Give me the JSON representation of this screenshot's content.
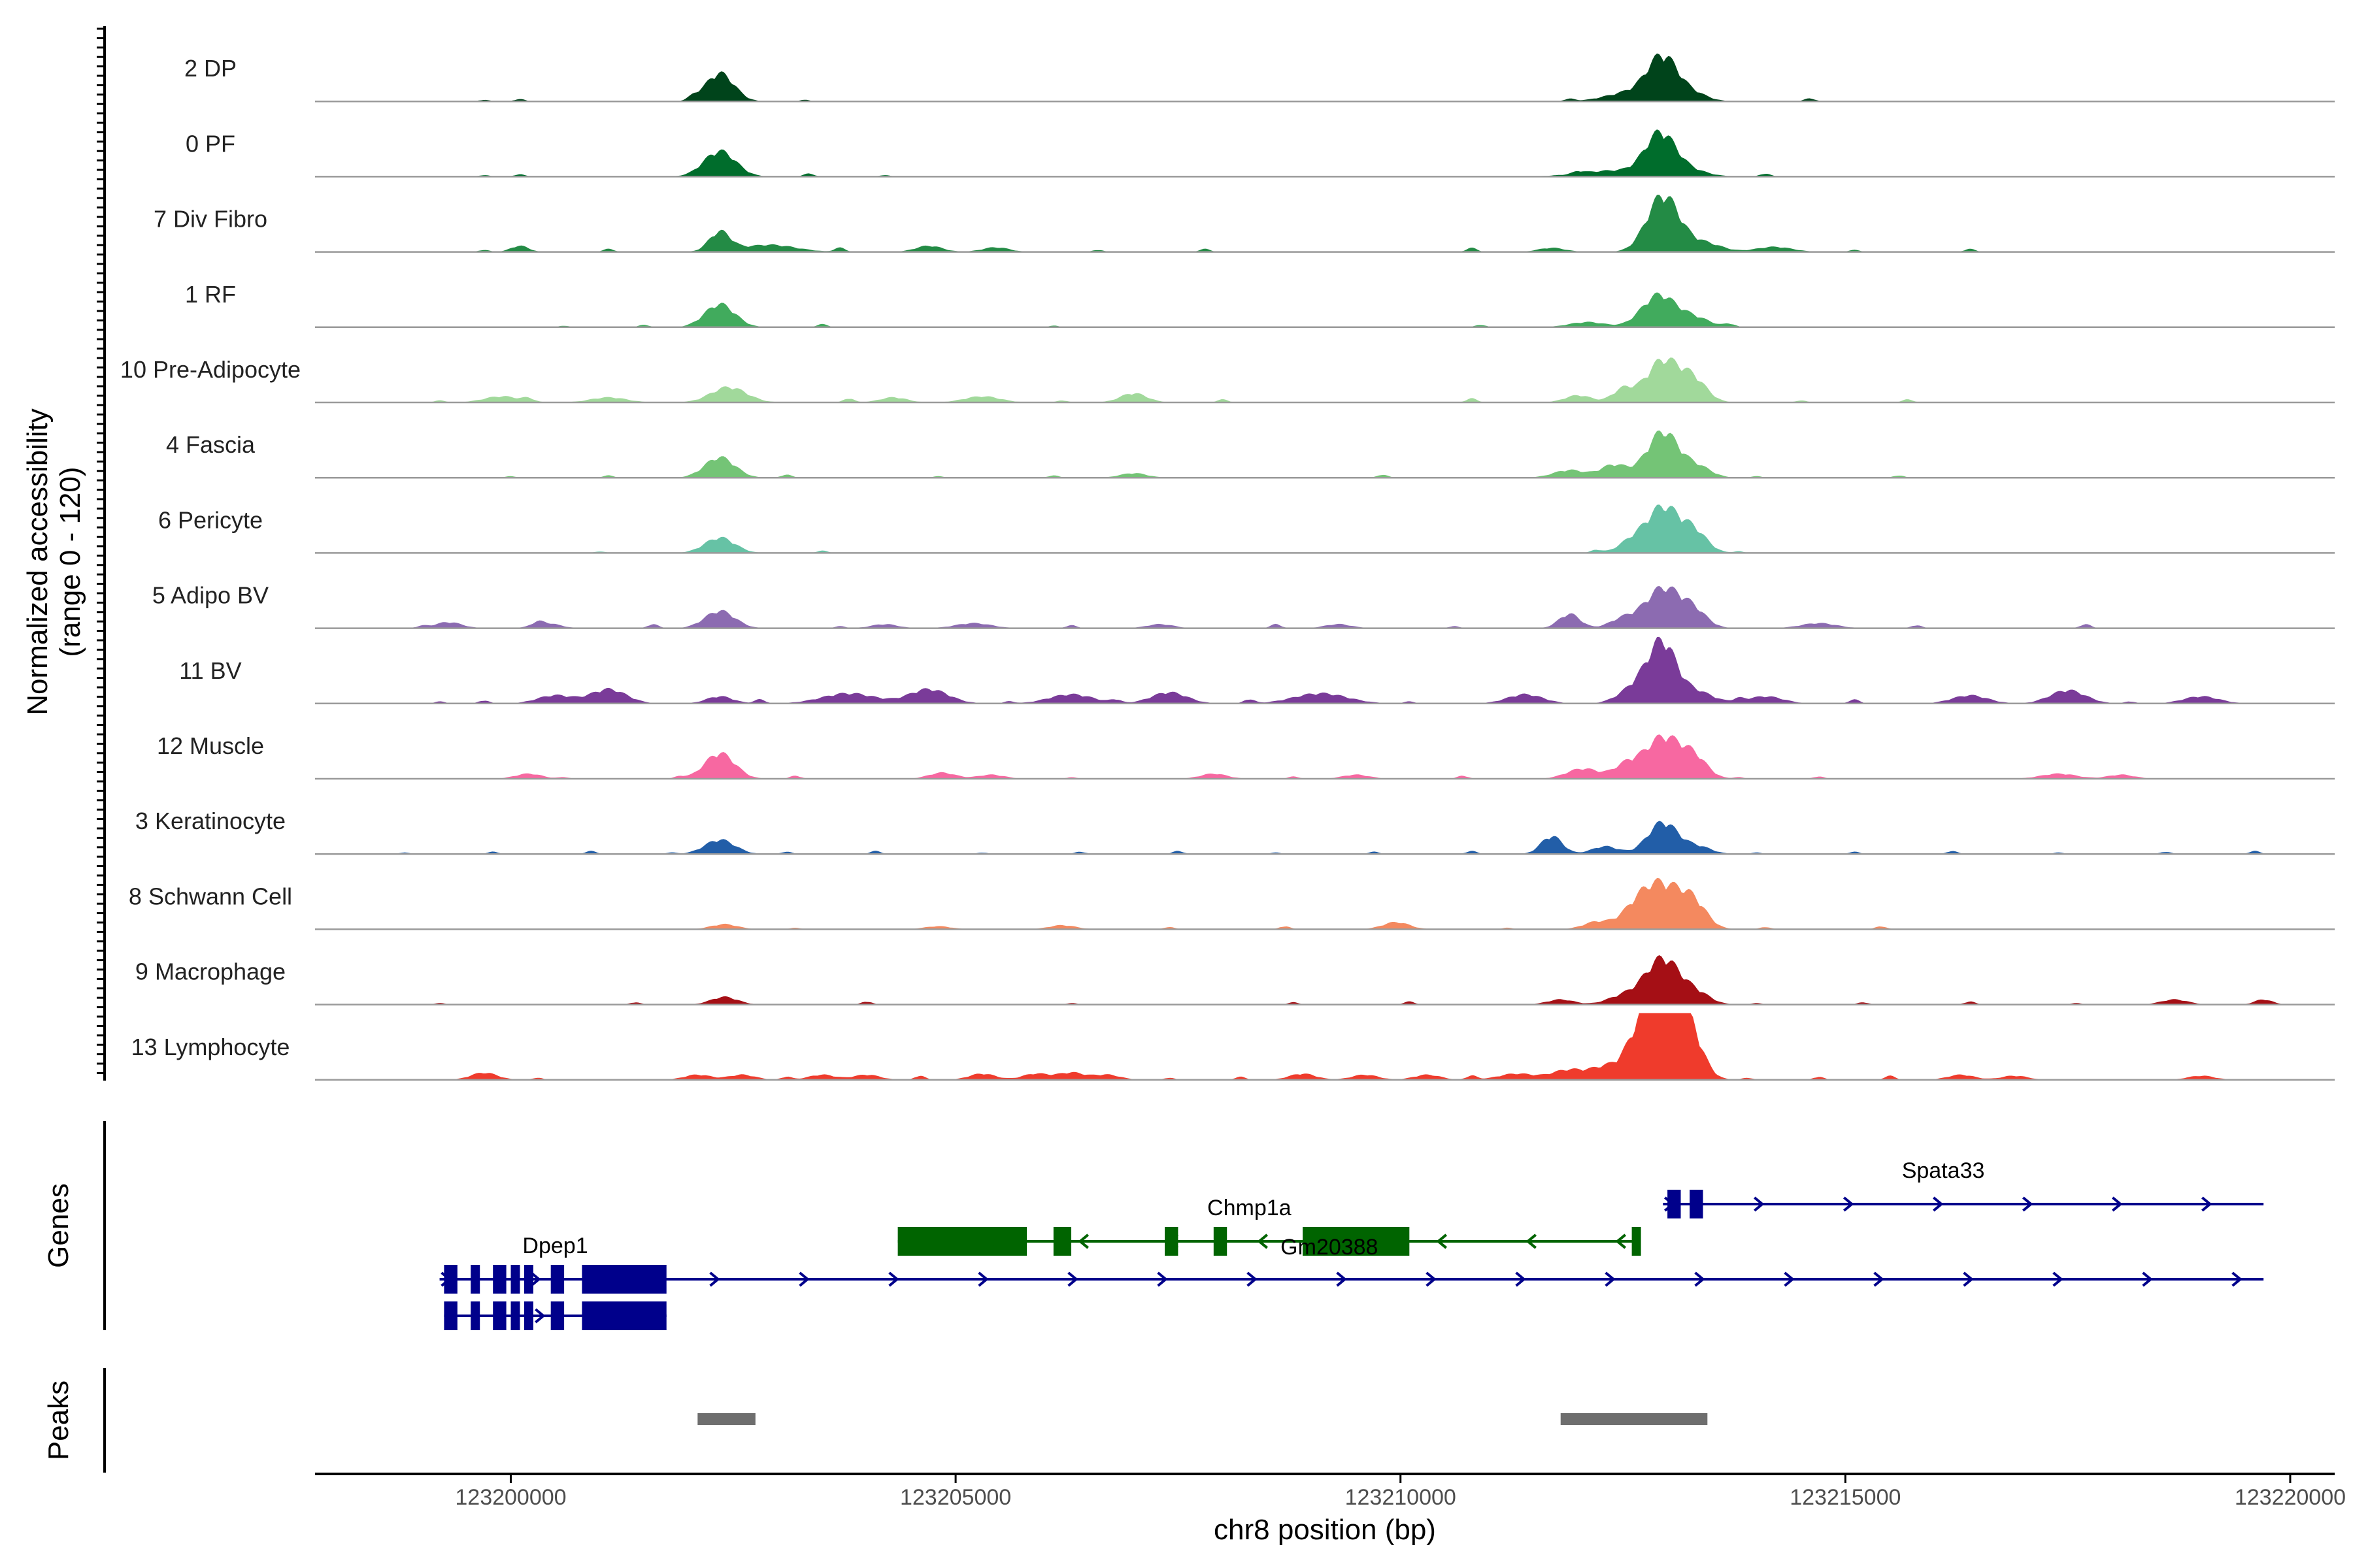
{
  "chart_data": {
    "type": "area",
    "title": "",
    "chromosome": "chr8",
    "xlabel": "chr8 position (bp)",
    "ylabel_line1": "Normalized accessibility",
    "ylabel_line2": "(range 0 - 120)",
    "xlim": [
      123197800,
      123220500
    ],
    "ylim": [
      0,
      120
    ],
    "x_ticks": [
      123200000,
      123205000,
      123210000,
      123215000,
      123220000
    ],
    "x_tick_labels": [
      "123200000",
      "123205000",
      "123210000",
      "123215000",
      "123220000"
    ],
    "tracks": [
      {
        "name": "2 DP",
        "color": "#00441b",
        "peaks": [
          [
            123202350,
            55,
            160
          ],
          [
            123212600,
            18,
            280
          ],
          [
            123212950,
            82,
            170
          ],
          [
            123213300,
            14,
            160
          ]
        ],
        "noise": [
          123199700,
          123200100,
          123202050,
          123203300,
          123211900,
          123214600
        ],
        "noise_level": 3
      },
      {
        "name": "0 PF",
        "color": "#006d2c",
        "peaks": [
          [
            123202350,
            50,
            180
          ],
          [
            123212400,
            12,
            380
          ],
          [
            123212920,
            80,
            170
          ],
          [
            123213250,
            12,
            200
          ]
        ],
        "noise": [
          123199700,
          123200100,
          123203350,
          123204200,
          123212000,
          123214100
        ],
        "noise_level": 3
      },
      {
        "name": "7 Div Fibro",
        "color": "#238b45",
        "peaks": [
          [
            123202350,
            38,
            120
          ],
          [
            123200100,
            12,
            100
          ],
          [
            123202900,
            14,
            300
          ],
          [
            123204700,
            12,
            150
          ],
          [
            123205450,
            9,
            150
          ],
          [
            123212950,
            110,
            180
          ],
          [
            123213400,
            18,
            200
          ],
          [
            123214200,
            10,
            200
          ],
          [
            123211700,
            8,
            150
          ]
        ],
        "noise": [
          123199700,
          123201100,
          123203700,
          123206600,
          123207800,
          123210800,
          123215100,
          123216400
        ],
        "noise_level": 4
      },
      {
        "name": "1 RF",
        "color": "#41ab5d",
        "peaks": [
          [
            123202350,
            45,
            170
          ],
          [
            123212900,
            62,
            190
          ],
          [
            123213300,
            18,
            180
          ],
          [
            123212100,
            10,
            200
          ]
        ],
        "noise": [
          123200600,
          123201500,
          123203500,
          123206100,
          123210900,
          123213700
        ],
        "noise_level": 3
      },
      {
        "name": "10 Pre-Adipocyte",
        "color": "#a1d99b",
        "peaks": [
          [
            123202450,
            30,
            200
          ],
          [
            123212950,
            82,
            190
          ],
          [
            123213300,
            40,
            150
          ],
          [
            123212500,
            25,
            120
          ],
          [
            123212000,
            14,
            150
          ],
          [
            123207000,
            18,
            150
          ],
          [
            123199900,
            12,
            200
          ],
          [
            123201100,
            10,
            200
          ],
          [
            123205300,
            12,
            200
          ],
          [
            123204300,
            10,
            150
          ]
        ],
        "noise": [
          123199200,
          123200200,
          123203800,
          123206200,
          123208000,
          123210800,
          123214500,
          123215700
        ],
        "noise_level": 4
      },
      {
        "name": "4 Fascia",
        "color": "#74c476",
        "peaks": [
          [
            123202350,
            40,
            170
          ],
          [
            123212950,
            90,
            180
          ],
          [
            123212400,
            25,
            150
          ],
          [
            123211900,
            15,
            180
          ],
          [
            123213350,
            20,
            150
          ],
          [
            123207000,
            9,
            150
          ]
        ],
        "noise": [
          123200000,
          123201100,
          123203100,
          123204800,
          123206100,
          123209800,
          123214000,
          123215600
        ],
        "noise_level": 3
      },
      {
        "name": "6 Pericyte",
        "color": "#66c2a5",
        "peaks": [
          [
            123202350,
            30,
            170
          ],
          [
            123212950,
            88,
            180
          ],
          [
            123213300,
            40,
            150
          ],
          [
            123212600,
            22,
            150
          ]
        ],
        "noise": [
          123201000,
          123203500,
          123212200,
          123213800
        ],
        "noise_level": 3
      },
      {
        "name": "5 Adipo BV",
        "color": "#8c6bb1",
        "peaks": [
          [
            123202350,
            34,
            170
          ],
          [
            123211900,
            28,
            120
          ],
          [
            123212950,
            78,
            200
          ],
          [
            123213300,
            30,
            150
          ],
          [
            123212500,
            18,
            150
          ],
          [
            123199300,
            12,
            150
          ],
          [
            123200400,
            10,
            150
          ],
          [
            123205200,
            10,
            200
          ],
          [
            123204200,
            8,
            150
          ],
          [
            123207300,
            8,
            150
          ],
          [
            123209300,
            8,
            150
          ],
          [
            123214700,
            10,
            200
          ]
        ],
        "noise": [
          123199000,
          123200300,
          123201600,
          123203700,
          123206300,
          123208600,
          123210600,
          123215800,
          123217700
        ],
        "noise_level": 4
      },
      {
        "name": "11 BV",
        "color": "#7a3b99",
        "peaks": [
          [
            123212950,
            100,
            150
          ],
          [
            123212700,
            40,
            200
          ],
          [
            123213300,
            25,
            200
          ],
          [
            123201100,
            28,
            200
          ],
          [
            123204700,
            28,
            220
          ],
          [
            123203800,
            20,
            300
          ],
          [
            123206300,
            18,
            250
          ],
          [
            123207400,
            22,
            200
          ],
          [
            123209100,
            20,
            300
          ],
          [
            123211400,
            18,
            200
          ],
          [
            123216400,
            16,
            200
          ],
          [
            123217500,
            26,
            200
          ],
          [
            123214100,
            14,
            200
          ],
          [
            123219000,
            14,
            200
          ],
          [
            123200500,
            16,
            200
          ],
          [
            123202350,
            14,
            150
          ]
        ],
        "noise": [
          123199200,
          123199700,
          123202800,
          123205600,
          123206800,
          123208300,
          123210100,
          123213800,
          123215100,
          123218200
        ],
        "noise_level": 4
      },
      {
        "name": "12 Muscle",
        "color": "#f768a1",
        "peaks": [
          [
            123202350,
            50,
            170
          ],
          [
            123212950,
            80,
            190
          ],
          [
            123213300,
            40,
            150
          ],
          [
            123212550,
            28,
            150
          ],
          [
            123212050,
            20,
            180
          ],
          [
            123200200,
            10,
            150
          ],
          [
            123204850,
            12,
            150
          ],
          [
            123205400,
            8,
            150
          ],
          [
            123207900,
            10,
            150
          ],
          [
            123209500,
            8,
            150
          ],
          [
            123217400,
            10,
            200
          ],
          [
            123218100,
            8,
            150
          ]
        ],
        "noise": [
          123200600,
          123201900,
          123203200,
          123206300,
          123208800,
          123210700,
          123213800,
          123214700
        ],
        "noise_level": 3
      },
      {
        "name": "3 Keratinocyte",
        "color": "#225ea8",
        "peaks": [
          [
            123212950,
            62,
            170
          ],
          [
            123211700,
            35,
            120
          ],
          [
            123212300,
            15,
            150
          ],
          [
            123202350,
            28,
            170
          ],
          [
            123213350,
            14,
            150
          ]
        ],
        "noise": [
          123198800,
          123199800,
          123200900,
          123201800,
          123203100,
          123204100,
          123205300,
          123206400,
          123207500,
          123208600,
          123209700,
          123210800,
          123214000,
          123215100,
          123216200,
          123217400,
          123218600,
          123219600
        ],
        "noise_level": 3
      },
      {
        "name": "8 Schwann Cell",
        "color": "#f4895f",
        "peaks": [
          [
            123212950,
            82,
            230
          ],
          [
            123212650,
            30,
            180
          ],
          [
            123213300,
            40,
            150
          ],
          [
            123212200,
            14,
            150
          ],
          [
            123209950,
            14,
            150
          ],
          [
            123206200,
            8,
            150
          ],
          [
            123202400,
            10,
            150
          ],
          [
            123204800,
            6,
            150
          ]
        ],
        "noise": [
          123203200,
          123207400,
          123208700,
          123211200,
          123214100,
          123215400
        ],
        "noise_level": 3
      },
      {
        "name": "9 Macrophage",
        "color": "#a50f15",
        "peaks": [
          [
            123212950,
            90,
            200
          ],
          [
            123212500,
            16,
            180
          ],
          [
            123213350,
            18,
            150
          ],
          [
            123202400,
            15,
            150
          ],
          [
            123211800,
            10,
            150
          ],
          [
            123218700,
            10,
            150
          ],
          [
            123219700,
            10,
            100
          ]
        ],
        "noise": [
          123199200,
          123201400,
          123204000,
          123206300,
          123208800,
          123210100,
          123214000,
          123215200,
          123216400,
          123217600
        ],
        "noise_level": 3
      },
      {
        "name": "13 Lymphocyte",
        "color": "#ef3b2c",
        "peaks": [
          [
            123212950,
            180,
            220
          ],
          [
            123213250,
            60,
            150
          ],
          [
            123212650,
            40,
            150
          ],
          [
            123212300,
            22,
            150
          ],
          [
            123211900,
            20,
            200
          ],
          [
            123211300,
            12,
            200
          ],
          [
            123199700,
            14,
            150
          ],
          [
            123202100,
            10,
            150
          ],
          [
            123202600,
            10,
            150
          ],
          [
            123203500,
            10,
            150
          ],
          [
            123204000,
            10,
            150
          ],
          [
            123205300,
            12,
            150
          ],
          [
            123205900,
            12,
            150
          ],
          [
            123206300,
            14,
            150
          ],
          [
            123206700,
            10,
            150
          ],
          [
            123208900,
            12,
            150
          ],
          [
            123209600,
            10,
            150
          ],
          [
            123210300,
            10,
            150
          ],
          [
            123216300,
            10,
            150
          ],
          [
            123216900,
            8,
            150
          ],
          [
            123219000,
            8,
            150
          ]
        ],
        "noise": [
          123200300,
          123203100,
          123204600,
          123207400,
          123208200,
          123210800,
          123213900,
          123214700,
          123215500
        ],
        "noise_level": 4
      }
    ],
    "genes": [
      {
        "name": "Dpep1",
        "strand": "+",
        "color": "#00008b",
        "row": 3,
        "line_start": 123199200,
        "line_end": 123219700,
        "exons": [
          [
            123199250,
            123199400
          ],
          [
            123199550,
            123199650
          ],
          [
            123199800,
            123199950
          ],
          [
            123200000,
            123200100
          ],
          [
            123200150,
            123200250
          ],
          [
            123200450,
            123200600
          ],
          [
            123200800,
            123201750
          ]
        ],
        "label_x": 123200500,
        "label_row": "above"
      },
      {
        "name": "Chmp1a",
        "strand": "-",
        "color": "#006400",
        "row": 2,
        "line_start": 123204350,
        "line_end": 123212700,
        "exons": [
          [
            123204350,
            123205800
          ],
          [
            123206100,
            123206300
          ],
          [
            123207350,
            123207500
          ],
          [
            123207900,
            123208050
          ]
        ],
        "label_x": 123208300,
        "label_row": "above"
      },
      {
        "name": "Gm20388",
        "strand": "-",
        "color": "#006400",
        "row": 2,
        "line_start": 123204350,
        "line_end": 123212700,
        "exons": [
          [
            123208900,
            123210100
          ],
          [
            123212600,
            123212700
          ]
        ],
        "label_x": 123209200,
        "label_row": "below"
      },
      {
        "name": "Spata33",
        "strand": "+",
        "color": "#00008b",
        "row": 1,
        "line_start": 123212950,
        "line_end": 123219700,
        "exons": [
          [
            123213000,
            123213150
          ],
          [
            123213250,
            123213400
          ]
        ],
        "label_x": 123216100,
        "label_row": "above"
      },
      {
        "name": "Dpep1",
        "strand": "+",
        "color": "#00008b",
        "row": 4,
        "line_start": 123199250,
        "line_end": 123201750,
        "exons": [
          [
            123199250,
            123199400
          ],
          [
            123199550,
            123199650
          ],
          [
            123199800,
            123199950
          ],
          [
            123200000,
            123200100
          ],
          [
            123200150,
            123200250
          ],
          [
            123200450,
            123200600
          ],
          [
            123200800,
            123201750
          ]
        ],
        "label_x": null,
        "label_row": "none"
      }
    ],
    "peaks": [
      [
        123202100,
        123202750
      ],
      [
        123211800,
        123213450
      ]
    ],
    "panels": {
      "genes": "Genes",
      "peaks": "Peaks"
    }
  }
}
